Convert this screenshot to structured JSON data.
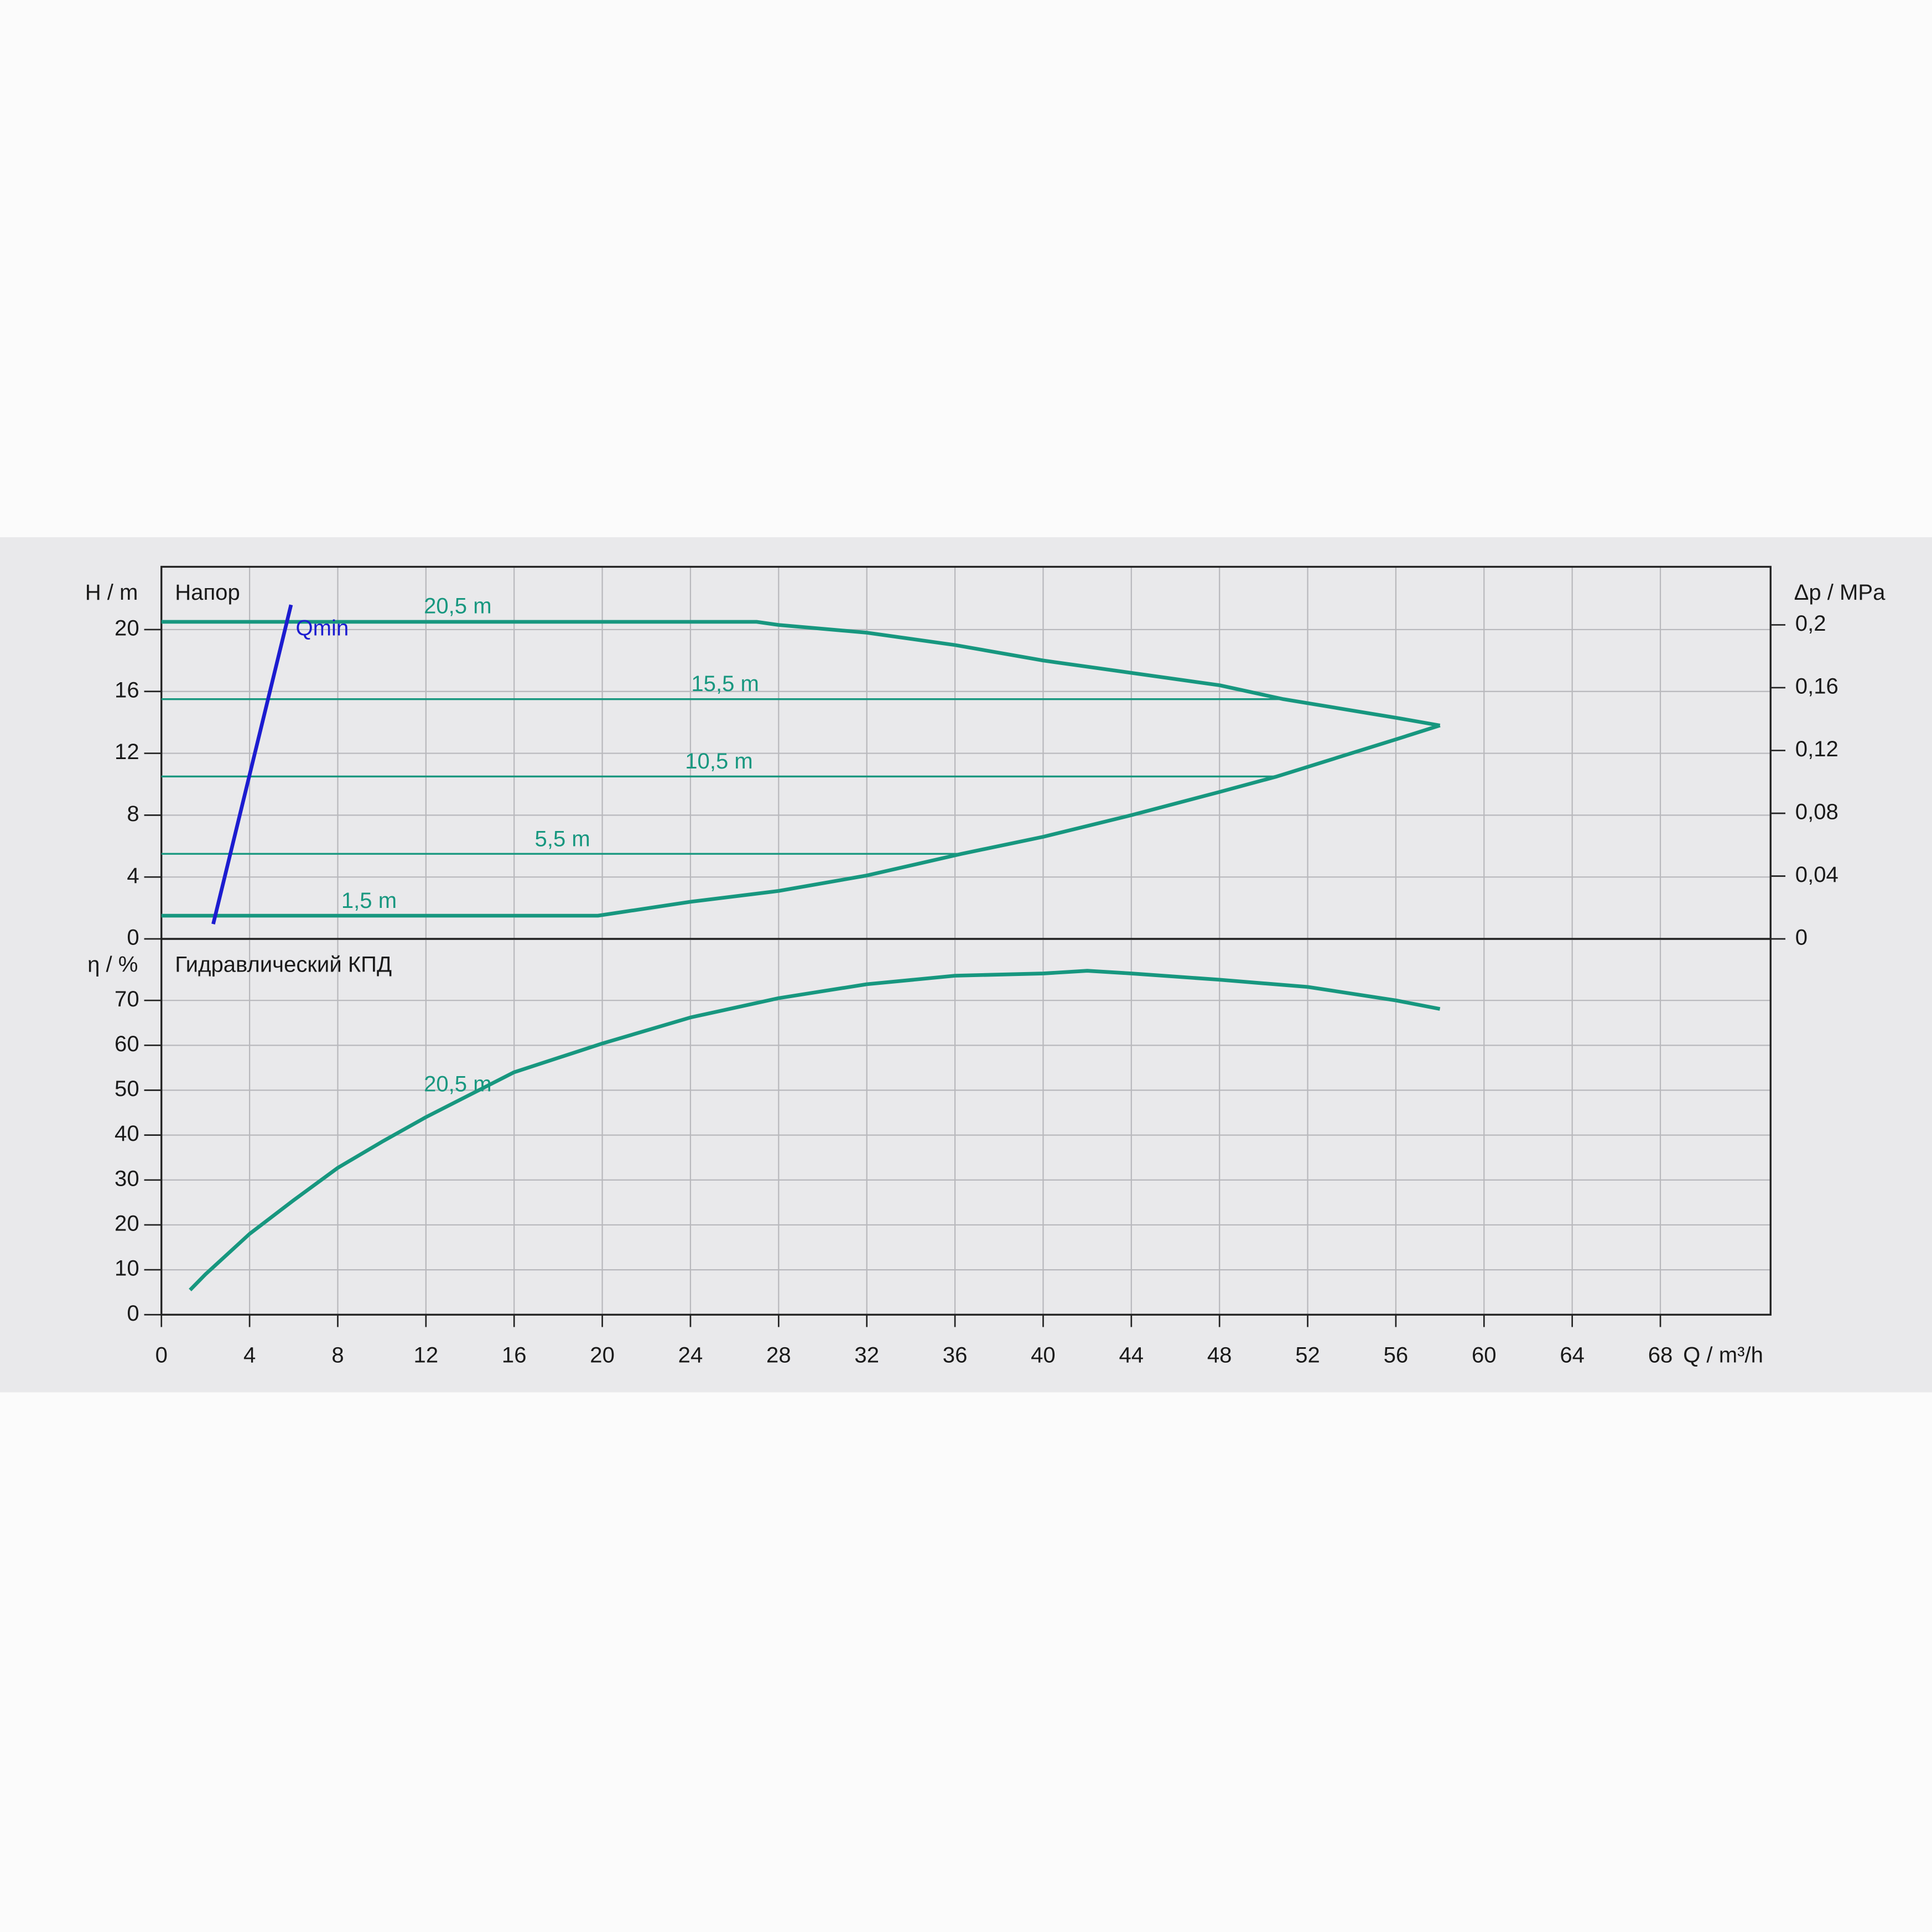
{
  "chart_data": [
    {
      "type": "line",
      "title": "Напор",
      "ylabel": "H / m",
      "y2label": "Δp / MPa",
      "xlim": [
        0,
        73
      ],
      "xticks": [
        0,
        4,
        8,
        12,
        16,
        20,
        24,
        28,
        32,
        36,
        40,
        44,
        48,
        52,
        56,
        60,
        64,
        68
      ],
      "ylim": [
        0,
        24.06
      ],
      "yticks": [
        0,
        4,
        8,
        12,
        16,
        20
      ],
      "y2lim": [
        0,
        0.237
      ],
      "y2ticks": [
        0,
        {
          "value": 0.04,
          "label": "0,04"
        },
        {
          "value": 0.08,
          "label": "0,08"
        },
        {
          "value": 0.12,
          "label": "0,12"
        },
        {
          "value": 0.16,
          "label": "0,16"
        },
        {
          "value": 0.2,
          "label": "0,2"
        }
      ],
      "grid": true,
      "series": [
        {
          "name": "20,5 m",
          "color": "#17977f",
          "linewidth": 3,
          "x": [
            0,
            27,
            28,
            32,
            36,
            40,
            44,
            48,
            50.9,
            56,
            58
          ],
          "values": [
            20.5,
            20.5,
            20.3,
            19.8,
            19.0,
            18.0,
            17.2,
            16.4,
            15.5,
            14.3,
            13.8
          ]
        },
        {
          "name": "15,5 m",
          "color": "#17977f",
          "linewidth": 1.5,
          "x": [
            0,
            50.9
          ],
          "values": [
            15.5,
            15.5
          ]
        },
        {
          "name": "10,5 m",
          "color": "#17977f",
          "linewidth": 1.5,
          "x": [
            0,
            50.6
          ],
          "values": [
            10.5,
            10.5
          ]
        },
        {
          "name": "5,5 m",
          "color": "#17977f",
          "linewidth": 1.5,
          "x": [
            0,
            36.3
          ],
          "values": [
            5.5,
            5.5
          ]
        },
        {
          "name": "1,5 m",
          "color": "#17977f",
          "linewidth": 3,
          "x": [
            0,
            19.8,
            24,
            28,
            32,
            36.3,
            40,
            44,
            48,
            50.6,
            56,
            58
          ],
          "values": [
            1.5,
            1.5,
            2.4,
            3.1,
            4.1,
            5.5,
            6.6,
            8.0,
            9.5,
            10.5,
            12.9,
            13.8
          ]
        },
        {
          "name": "Qmin",
          "color": "#1c1cd0",
          "linewidth": 3,
          "x": [
            2.35,
            5.88
          ],
          "values": [
            0.96,
            21.6
          ]
        }
      ]
    },
    {
      "type": "line",
      "title": "Гидравлический КПД",
      "ylabel": "η / %",
      "xlabel": "Q / m³/h",
      "xlim": [
        0,
        73
      ],
      "xticks": [
        0,
        4,
        8,
        12,
        16,
        20,
        24,
        28,
        32,
        36,
        40,
        44,
        48,
        52,
        56,
        60,
        64,
        68
      ],
      "ylim": [
        0,
        83.7
      ],
      "yticks": [
        0,
        10,
        20,
        30,
        40,
        50,
        60,
        70
      ],
      "grid": true,
      "series": [
        {
          "name": "20,5 m",
          "color": "#17977f",
          "linewidth": 3,
          "x": [
            1.3,
            2,
            4,
            6,
            8,
            10,
            12,
            16,
            20,
            24,
            28,
            32,
            36,
            40,
            42,
            44,
            48,
            52,
            56,
            58
          ],
          "values": [
            5.5,
            9,
            18,
            25.5,
            32.7,
            38.5,
            44,
            54,
            60.4,
            66.2,
            70.5,
            73.6,
            75.5,
            76,
            76.6,
            76,
            74.6,
            73,
            70,
            68.1
          ]
        }
      ]
    }
  ]
}
